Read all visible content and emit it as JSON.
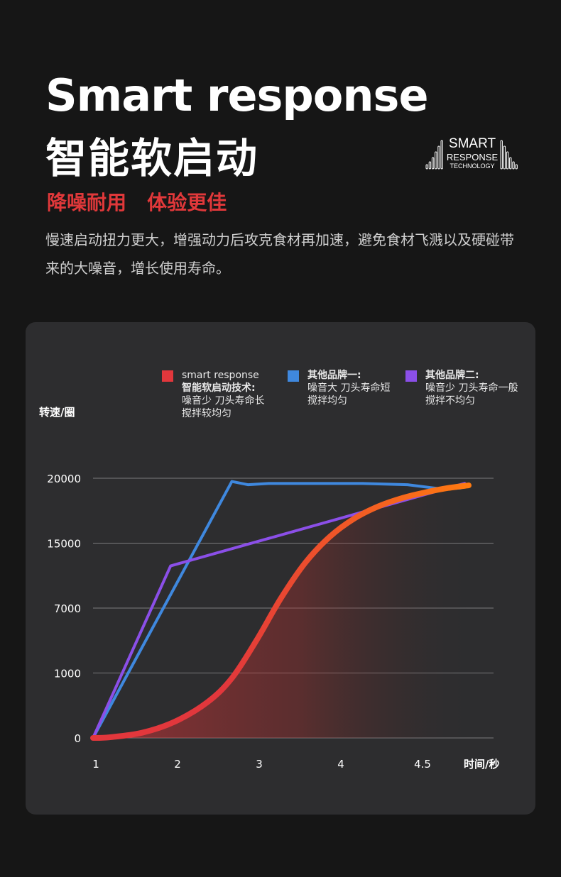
{
  "header": {
    "title_en": "Smart response",
    "title_zh": "智能软启动",
    "subtitle": "降噪耐用   体验更佳",
    "description": "慢速启动扭力更大，增强动力后攻克食材再加速，避免食材飞溅以及硬碰带来的大噪音，增长使用寿命。"
  },
  "logo": {
    "line1": "SMART",
    "line2": "RESPONSE",
    "line3": "TECHNOLOGY"
  },
  "legend": [
    {
      "color": "#e2373c",
      "line1": "smart response",
      "line2": "智能软启动技术:",
      "line3": "噪音少 刀头寿命长",
      "line4": "搅拌较均匀"
    },
    {
      "color": "#3f88de",
      "line1": "其他品牌一:",
      "line2": "噪音大 刀头寿命短",
      "line3": "搅拌均匀",
      "line4": ""
    },
    {
      "color": "#8b4fe8",
      "line1": "其他品牌二:",
      "line2": "噪音少 刀头寿命一般",
      "line3": "搅拌不均匀",
      "line4": ""
    }
  ],
  "chart_data": {
    "type": "line",
    "ylabel": "转速/圈",
    "xlabel": "时间/秒",
    "y_ticks": [
      "0",
      "1000",
      "7000",
      "15000",
      "20000"
    ],
    "x_ticks": [
      "1",
      "2",
      "3",
      "4",
      "4.5"
    ],
    "grid": "horizontal",
    "legend_position": "top",
    "note": "axis scale is non-linear; x and y below are expressed in tick-index units (y: 0=\"0\", 1=\"1000\", 2=\"7000\", 3=\"15000\", 4=\"20000\"; x: 0=\"1\", 1=\"2\", 2=\"3\", 3=\"4\", 4=\"4.5\")",
    "series": [
      {
        "name": "其他品牌一",
        "color": "#3f88de",
        "points": [
          [
            0,
            0
          ],
          [
            1.7,
            3.95
          ],
          [
            1.9,
            3.9
          ],
          [
            2.15,
            3.92
          ],
          [
            3.3,
            3.92
          ],
          [
            3.85,
            3.9
          ],
          [
            4.3,
            3.83
          ],
          [
            4.5,
            3.85
          ]
        ]
      },
      {
        "name": "其他品牌二",
        "color": "#8b4fe8",
        "points": [
          [
            0,
            0
          ],
          [
            0.95,
            2.65
          ],
          [
            4.55,
            3.92
          ]
        ]
      },
      {
        "name": "smart response",
        "color_start": "#e2373c",
        "color_end": "#ff7a10",
        "points": [
          [
            0,
            0
          ],
          [
            0.2,
            0.01
          ],
          [
            0.6,
            0.08
          ],
          [
            1.0,
            0.25
          ],
          [
            1.4,
            0.55
          ],
          [
            1.7,
            0.92
          ],
          [
            2.0,
            1.5
          ],
          [
            2.3,
            2.15
          ],
          [
            2.6,
            2.7
          ],
          [
            2.9,
            3.1
          ],
          [
            3.2,
            3.38
          ],
          [
            3.5,
            3.57
          ],
          [
            3.8,
            3.7
          ],
          [
            4.1,
            3.79
          ],
          [
            4.35,
            3.85
          ],
          [
            4.6,
            3.89
          ]
        ]
      }
    ]
  }
}
